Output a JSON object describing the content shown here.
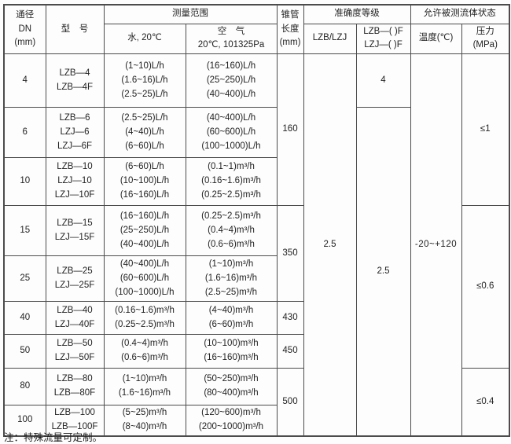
{
  "header": {
    "dn_lines": [
      "通径",
      "DN",
      "(mm)"
    ],
    "model": "型　号",
    "range": "测量范围",
    "water": "水, 20℃",
    "air_lines": [
      "空　气",
      "20℃, 101325Pa"
    ],
    "cone_lines": [
      "锥管",
      "长度",
      "(mm)"
    ],
    "accuracy": "准确度等级",
    "acc_lzb": "LZB/LZJ",
    "acc_f_lines": [
      "LZB—( )F",
      "LZJ—( )F"
    ],
    "fluid_state": "允许被测流体状态",
    "temperature": "温度(℃)",
    "pressure_lines": [
      "压力",
      "(MPa)"
    ]
  },
  "merged": {
    "cone_160": "160",
    "cone_350": "350",
    "cone_430": "430",
    "cone_450": "450",
    "cone_500": "500",
    "acc_lzb_all": "2.5",
    "acc_f_dn4": "4",
    "acc_f_rest": "2.5",
    "temperature_range": "-20~+120",
    "pressure_1": "≤1",
    "pressure_06": "≤0.6",
    "pressure_04": "≤0.4"
  },
  "rows": [
    {
      "dn": "4",
      "models": [
        "LZB—4",
        "LZB—4F"
      ],
      "water": [
        "(1~10)L/h",
        "(1.6~16)L/h",
        "(2.5~25)L/h"
      ],
      "air": [
        "(16~160)L/h",
        "(25~250)L/h",
        "(40~400)L/h"
      ]
    },
    {
      "dn": "6",
      "models": [
        "LZB—6",
        "LZJ—6",
        "LZJ—6F"
      ],
      "water": [
        "(2.5~25)L/h",
        "(4~40)L/h",
        "(6~60)L/h"
      ],
      "air": [
        "(40~400)L/h",
        "(60~600)L/h",
        "(100~1000)L/h"
      ]
    },
    {
      "dn": "10",
      "models": [
        "LZB—10",
        "LZJ—10",
        "LZJ—10F"
      ],
      "water": [
        "(6~60)L/h",
        "(10~100)L/h",
        "(16~160)L/h"
      ],
      "air": [
        "(0.1~1)m³/h",
        "(0.16~1.6)m³/h",
        "(0.25~2.5)m³/h"
      ]
    },
    {
      "dn": "15",
      "models": [
        "LZB—15",
        "LZJ—15F"
      ],
      "water": [
        "(16~160)L/h",
        "(25~250)L/h",
        "(40~400)L/h"
      ],
      "air": [
        "(0.25~2.5)m³/h",
        "(0.4~4)m³/h",
        "(0.6~6)m³/h"
      ]
    },
    {
      "dn": "25",
      "models": [
        "LZB—25",
        "LZJ—25F"
      ],
      "water": [
        "(40~400)L/h",
        "(60~600)L/h",
        "(100~1000)L/h"
      ],
      "air": [
        "(1~10)m³/h",
        "(1.6~16)m³/h",
        "(2.5~25)m³/h"
      ]
    },
    {
      "dn": "40",
      "models": [
        "LZB—40",
        "LZJ—40F"
      ],
      "water": [
        "(0.16~1.6)m³/h",
        "(0.25~2.5)m³/h"
      ],
      "air": [
        "(4~40)m³/h",
        "(6~60)m³/h"
      ]
    },
    {
      "dn": "50",
      "models": [
        "LZB—50",
        "LZJ—50F"
      ],
      "water": [
        "(0.4~4)m³/h",
        "(0.6~6)m³/h"
      ],
      "air": [
        "(10~100)m³/h",
        "(16~160)m³/h"
      ]
    },
    {
      "dn": "80",
      "models": [
        "LZB—80",
        "LZB—80F"
      ],
      "water": [
        "(1~10)m³/h",
        "(1.6~16)m³/h"
      ],
      "air": [
        "(50~250)m³/h",
        "(80~400)m³/h"
      ]
    },
    {
      "dn": "100",
      "models": [
        "LZB—100",
        "LZB—100F"
      ],
      "water": [
        "(5~25)m³/h",
        "(8~40)m³/h"
      ],
      "air": [
        "(120~600)m³/h",
        "(200~1000)m³/h"
      ]
    }
  ],
  "note": "注：特殊流量可定制。"
}
